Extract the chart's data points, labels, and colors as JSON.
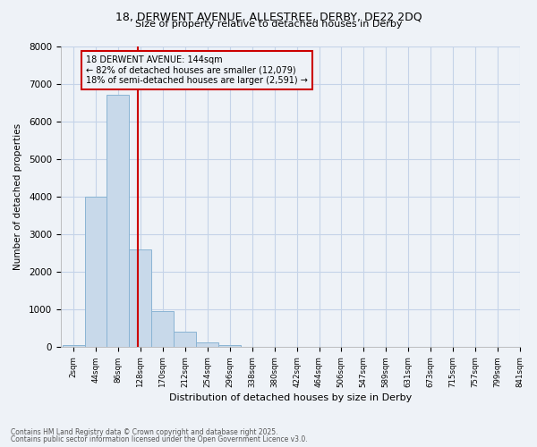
{
  "title1": "18, DERWENT AVENUE, ALLESTREE, DERBY, DE22 2DQ",
  "title2": "Size of property relative to detached houses in Derby",
  "xlabel": "Distribution of detached houses by size in Derby",
  "ylabel": "Number of detached properties",
  "bins": [
    2,
    44,
    86,
    128,
    170,
    212,
    254,
    296,
    338,
    380,
    422,
    464,
    506,
    547,
    589,
    631,
    673,
    715,
    757,
    799,
    841
  ],
  "bar_heights": [
    50,
    4000,
    6700,
    2600,
    950,
    420,
    130,
    50,
    15,
    5,
    5,
    0,
    0,
    0,
    0,
    0,
    0,
    0,
    0,
    0
  ],
  "bar_color": "#c8d9ea",
  "bar_edgecolor": "#8ab4d4",
  "property_size": 144,
  "redline_color": "#cc0000",
  "ylim": [
    0,
    8000
  ],
  "yticks": [
    0,
    1000,
    2000,
    3000,
    4000,
    5000,
    6000,
    7000,
    8000
  ],
  "annotation_title": "18 DERWENT AVENUE: 144sqm",
  "annotation_line1": "← 82% of detached houses are smaller (12,079)",
  "annotation_line2": "18% of semi-detached houses are larger (2,591) →",
  "annotation_box_color": "#cc0000",
  "footnote1": "Contains HM Land Registry data © Crown copyright and database right 2025.",
  "footnote2": "Contains public sector information licensed under the Open Government Licence v3.0.",
  "background_color": "#eef2f7",
  "grid_color": "#c5d3e8"
}
